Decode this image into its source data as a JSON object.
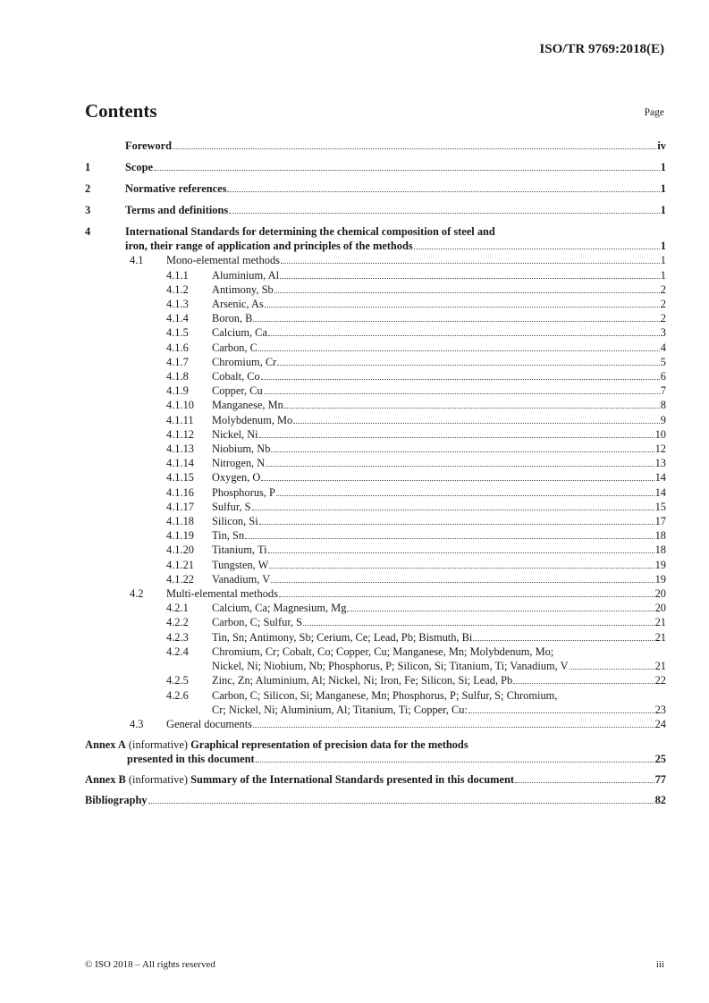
{
  "header": {
    "doc_id": "ISO/TR 9769:2018(E)"
  },
  "title": "Contents",
  "page_label": "Page",
  "toc": [
    {
      "level": 1,
      "num": "",
      "lines": [
        "Foreword"
      ],
      "page": "iv"
    },
    {
      "level": 1,
      "num": "1",
      "lines": [
        "Scope"
      ],
      "page": "1"
    },
    {
      "level": 1,
      "num": "2",
      "lines": [
        "Normative references"
      ],
      "page": "1"
    },
    {
      "level": 1,
      "num": "3",
      "lines": [
        "Terms and definitions"
      ],
      "page": "1"
    },
    {
      "level": 1,
      "num": "4",
      "lines": [
        "International Standards for determining the chemical composition of steel and",
        "iron, their range of application and principles of the methods"
      ],
      "page": "1"
    },
    {
      "level": 2,
      "num": "4.1",
      "lines": [
        "Mono-elemental methods"
      ],
      "page": "1"
    },
    {
      "level": 3,
      "num": "4.1.1",
      "lines": [
        "Aluminium, Al"
      ],
      "page": "1"
    },
    {
      "level": 3,
      "num": "4.1.2",
      "lines": [
        "Antimony, Sb"
      ],
      "page": "2"
    },
    {
      "level": 3,
      "num": "4.1.3",
      "lines": [
        "Arsenic, As"
      ],
      "page": "2"
    },
    {
      "level": 3,
      "num": "4.1.4",
      "lines": [
        "Boron, B"
      ],
      "page": "2"
    },
    {
      "level": 3,
      "num": "4.1.5",
      "lines": [
        "Calcium, Ca"
      ],
      "page": "3"
    },
    {
      "level": 3,
      "num": "4.1.6",
      "lines": [
        "Carbon, C"
      ],
      "page": "4"
    },
    {
      "level": 3,
      "num": "4.1.7",
      "lines": [
        "Chromium, Cr"
      ],
      "page": "5"
    },
    {
      "level": 3,
      "num": "4.1.8",
      "lines": [
        "Cobalt, Co"
      ],
      "page": "6"
    },
    {
      "level": 3,
      "num": "4.1.9",
      "lines": [
        "Copper, Cu"
      ],
      "page": "7"
    },
    {
      "level": 3,
      "num": "4.1.10",
      "lines": [
        "Manganese, Mn"
      ],
      "page": "8"
    },
    {
      "level": 3,
      "num": "4.1.11",
      "lines": [
        "Molybdenum, Mo"
      ],
      "page": "9"
    },
    {
      "level": 3,
      "num": "4.1.12",
      "lines": [
        "Nickel, Ni"
      ],
      "page": "10"
    },
    {
      "level": 3,
      "num": "4.1.13",
      "lines": [
        "Niobium, Nb"
      ],
      "page": "12"
    },
    {
      "level": 3,
      "num": "4.1.14",
      "lines": [
        "Nitrogen, N"
      ],
      "page": "13"
    },
    {
      "level": 3,
      "num": "4.1.15",
      "lines": [
        "Oxygen, O"
      ],
      "page": "14"
    },
    {
      "level": 3,
      "num": "4.1.16",
      "lines": [
        "Phosphorus, P"
      ],
      "page": "14"
    },
    {
      "level": 3,
      "num": "4.1.17",
      "lines": [
        "Sulfur, S"
      ],
      "page": "15"
    },
    {
      "level": 3,
      "num": "4.1.18",
      "lines": [
        "Silicon, Si"
      ],
      "page": "17"
    },
    {
      "level": 3,
      "num": "4.1.19",
      "lines": [
        "Tin, Sn"
      ],
      "page": "18"
    },
    {
      "level": 3,
      "num": "4.1.20",
      "lines": [
        "Titanium, Ti"
      ],
      "page": "18"
    },
    {
      "level": 3,
      "num": "4.1.21",
      "lines": [
        "Tungsten, W"
      ],
      "page": "19"
    },
    {
      "level": 3,
      "num": "4.1.22",
      "lines": [
        "Vanadium, V"
      ],
      "page": "19"
    },
    {
      "level": 2,
      "num": "4.2",
      "lines": [
        "Multi-elemental methods"
      ],
      "page": "20"
    },
    {
      "level": 3,
      "num": "4.2.1",
      "lines": [
        "Calcium, Ca; Magnesium, Mg"
      ],
      "page": "20"
    },
    {
      "level": 3,
      "num": "4.2.2",
      "lines": [
        "Carbon, C; Sulfur, S"
      ],
      "page": "21"
    },
    {
      "level": 3,
      "num": "4.2.3",
      "lines": [
        "Tin, Sn; Antimony, Sb; Cerium, Ce; Lead, Pb; Bismuth, Bi"
      ],
      "page": "21"
    },
    {
      "level": 3,
      "num": "4.2.4",
      "lines": [
        "Chromium, Cr; Cobalt, Co; Copper, Cu; Manganese, Mn; Molybdenum, Mo;",
        "Nickel, Ni; Niobium, Nb; Phosphorus, P; Silicon, Si; Titanium, Ti; Vanadium, V"
      ],
      "page": "21"
    },
    {
      "level": 3,
      "num": "4.2.5",
      "lines": [
        "Zinc, Zn; Aluminium, Al; Nickel, Ni; Iron, Fe; Silicon, Si; Lead, Pb"
      ],
      "page": "22"
    },
    {
      "level": 3,
      "num": "4.2.6",
      "lines": [
        "Carbon, C; Silicon, Si; Manganese, Mn; Phosphorus, P; Sulfur, S; Chromium,",
        "Cr; Nickel, Ni; Aluminium, Al; Titanium, Ti; Copper, Cu:"
      ],
      "page": "23"
    },
    {
      "level": 2,
      "num": "4.3",
      "lines": [
        "General documents"
      ],
      "page": "24"
    }
  ],
  "annexes": [
    {
      "label": "Annex A",
      "note": "(informative)",
      "lines": [
        "Graphical representation of precision data for the methods",
        "presented in this document"
      ],
      "page": "25"
    },
    {
      "label": "Annex B",
      "note": "(informative)",
      "lines": [
        "Summary of the International Standards presented in this document"
      ],
      "page": "77"
    }
  ],
  "bibliography": {
    "label": "Bibliography",
    "page": "82"
  },
  "footer": {
    "copyright": "© ISO 2018 – All rights reserved",
    "page": "iii"
  }
}
